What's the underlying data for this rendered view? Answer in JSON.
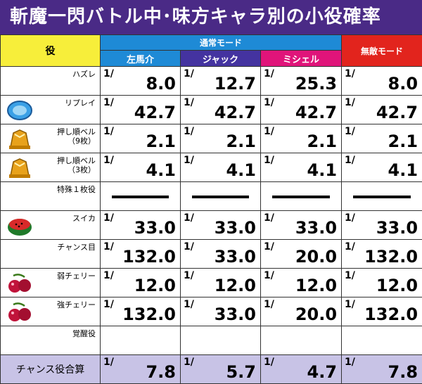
{
  "title": "斬魔一閃バトル中･味方キャラ別の小役確率",
  "header": {
    "role": "役",
    "normal_mode": "通常モード",
    "muteki_mode": "無敵モード",
    "chars": [
      "左馬介",
      "ジャック",
      "ミシェル"
    ]
  },
  "slash": "1/",
  "rows": [
    {
      "label": "ハズレ",
      "icon": "",
      "values": [
        "8.0",
        "12.7",
        "25.3",
        "8.0"
      ]
    },
    {
      "label": "リプレイ",
      "icon": "replay-icon",
      "values": [
        "42.7",
        "42.7",
        "42.7",
        "42.7"
      ]
    },
    {
      "label": "押し順ベル\n（9枚）",
      "icon": "bell-icon",
      "values": [
        "2.1",
        "2.1",
        "2.1",
        "2.1"
      ]
    },
    {
      "label": "押し順ベル\n（3枚）",
      "icon": "bell-icon",
      "values": [
        "4.1",
        "4.1",
        "4.1",
        "4.1"
      ]
    },
    {
      "label": "特殊１枚役",
      "icon": "",
      "values": [
        "—",
        "—",
        "—",
        "—"
      ]
    },
    {
      "label": "スイカ",
      "icon": "watermelon-icon",
      "values": [
        "33.0",
        "33.0",
        "33.0",
        "33.0"
      ]
    },
    {
      "label": "チャンス目",
      "icon": "",
      "values": [
        "132.0",
        "33.0",
        "20.0",
        "132.0"
      ]
    },
    {
      "label": "弱チェリー",
      "icon": "cherry-icon",
      "values": [
        "12.0",
        "12.0",
        "12.0",
        "12.0"
      ]
    },
    {
      "label": "強チェリー",
      "icon": "cherry-icon",
      "values": [
        "132.0",
        "33.0",
        "20.0",
        "132.0"
      ]
    },
    {
      "label": "覚醒役",
      "icon": "",
      "values": [
        "",
        "",
        "",
        ""
      ]
    }
  ],
  "total": {
    "label": "チャンス役合算",
    "values": [
      "7.8",
      "5.7",
      "4.7",
      "7.8"
    ]
  },
  "colors": {
    "title_bg": "#4a2a86",
    "normal": "#1e8ad6",
    "jack": "#4433a0",
    "michelle": "#e0147a",
    "muteki": "#e2241d",
    "role_hdr": "#f7ee3a",
    "total_bg": "#c8c3e6"
  }
}
